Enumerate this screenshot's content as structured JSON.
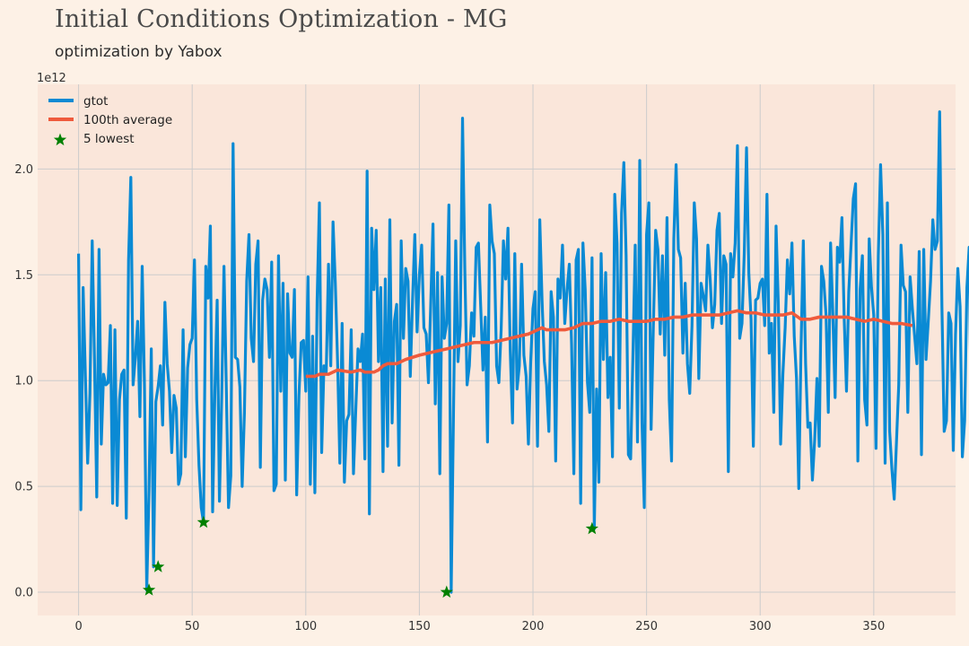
{
  "title": "Initial Conditions Optimization - MG",
  "subtitle": "optimization by Yabox",
  "chart_data": {
    "type": "line",
    "title": "Initial Conditions Optimization - MG",
    "subtitle": "optimization by Yabox",
    "y_offset_label": "1e12",
    "xlim": [
      -18,
      386
    ],
    "ylim": [
      -0.11,
      2.4
    ],
    "x_ticks": [
      0,
      50,
      100,
      150,
      200,
      250,
      300,
      350
    ],
    "y_ticks": [
      0.0,
      0.5,
      1.0,
      1.5,
      2.0
    ],
    "x_tick_labels": [
      "0",
      "50",
      "100",
      "150",
      "200",
      "250",
      "300",
      "350"
    ],
    "y_tick_labels": [
      "0.0",
      "0.5",
      "1.0",
      "1.5",
      "2.0"
    ],
    "grid": true,
    "legend_position": "top-left",
    "colors": {
      "background": "#fdf1e6",
      "plot_area": "#fae6da",
      "grid": "#cccccc",
      "gtot": "#0a8ad4",
      "average": "#ef5a3c",
      "lowest": "#008000"
    },
    "series": [
      {
        "name": "gtot",
        "type": "line",
        "x_start": 0,
        "values": [
          1.6,
          0.39,
          1.44,
          1.02,
          0.61,
          0.94,
          1.66,
          1.1,
          0.45,
          1.62,
          0.7,
          1.03,
          0.98,
          0.99,
          1.26,
          0.42,
          1.24,
          0.41,
          0.91,
          1.03,
          1.05,
          0.35,
          1.57,
          1.96,
          0.98,
          1.11,
          1.28,
          0.83,
          1.54,
          0.98,
          0.01,
          0.48,
          1.15,
          0.12,
          0.9,
          0.97,
          1.07,
          0.79,
          1.37,
          1.08,
          0.95,
          0.66,
          0.93,
          0.87,
          0.51,
          0.56,
          1.24,
          0.64,
          1.06,
          1.17,
          1.2,
          1.57,
          0.91,
          0.6,
          0.4,
          0.33,
          1.54,
          1.39,
          1.73,
          0.38,
          0.95,
          1.38,
          0.43,
          0.92,
          1.54,
          0.98,
          0.4,
          0.55,
          2.12,
          1.11,
          1.1,
          0.97,
          0.5,
          0.85,
          1.47,
          1.69,
          1.2,
          1.09,
          1.55,
          1.66,
          0.59,
          1.38,
          1.48,
          1.43,
          1.11,
          1.56,
          0.48,
          0.51,
          1.59,
          0.95,
          1.46,
          0.53,
          1.41,
          1.13,
          1.11,
          1.43,
          0.46,
          0.93,
          1.18,
          1.19,
          0.95,
          1.49,
          0.51,
          1.21,
          0.47,
          1.38,
          1.84,
          0.66,
          1.07,
          1.04,
          1.55,
          1.07,
          1.75,
          1.46,
          1.09,
          0.61,
          1.27,
          0.52,
          0.81,
          0.84,
          1.24,
          0.56,
          0.86,
          1.15,
          1.09,
          1.22,
          0.63,
          1.99,
          0.37,
          1.72,
          1.43,
          1.71,
          1.09,
          1.44,
          0.57,
          1.48,
          0.69,
          1.76,
          0.8,
          1.28,
          1.36,
          0.6,
          1.66,
          1.2,
          1.53,
          1.47,
          1.02,
          1.38,
          1.69,
          1.23,
          1.5,
          1.64,
          1.25,
          1.22,
          0.99,
          1.36,
          1.74,
          0.89,
          1.51,
          0.56,
          1.49,
          1.2,
          1.27,
          1.83,
          0.0,
          0.83,
          1.66,
          1.09,
          1.26,
          2.24,
          1.53,
          0.98,
          1.07,
          1.32,
          1.21,
          1.63,
          1.65,
          1.35,
          1.05,
          1.3,
          0.71,
          1.83,
          1.66,
          1.6,
          1.07,
          0.99,
          1.24,
          1.66,
          1.48,
          1.72,
          1.14,
          0.8,
          1.6,
          0.96,
          1.07,
          1.55,
          1.12,
          1.02,
          0.7,
          1.09,
          1.34,
          1.42,
          0.69,
          1.76,
          1.38,
          1.09,
          0.98,
          0.76,
          1.42,
          1.3,
          0.62,
          1.48,
          1.39,
          1.64,
          1.27,
          1.43,
          1.55,
          1.17,
          0.56,
          1.57,
          1.62,
          0.42,
          1.65,
          1.43,
          0.99,
          0.85,
          1.58,
          0.3,
          0.96,
          0.52,
          1.6,
          1.1,
          1.51,
          0.92,
          1.11,
          0.64,
          1.88,
          1.65,
          0.87,
          1.79,
          2.03,
          1.59,
          0.65,
          0.63,
          1.12,
          1.64,
          0.71,
          2.04,
          0.8,
          0.4,
          1.69,
          1.84,
          0.77,
          1.26,
          1.71,
          1.62,
          1.22,
          1.59,
          1.12,
          1.77,
          0.91,
          0.62,
          1.67,
          2.02,
          1.62,
          1.58,
          1.13,
          1.46,
          1.08,
          0.94,
          1.26,
          1.84,
          1.67,
          1.01,
          1.46,
          1.4,
          1.33,
          1.64,
          1.48,
          1.25,
          1.36,
          1.71,
          1.79,
          1.27,
          1.59,
          1.55,
          0.57,
          1.6,
          1.49,
          1.65,
          2.11,
          1.2,
          1.27,
          1.6,
          2.1,
          1.51,
          1.29,
          0.69,
          1.38,
          1.39,
          1.46,
          1.48,
          1.26,
          1.88,
          1.13,
          1.27,
          0.85,
          1.73,
          1.36,
          0.7,
          1.03,
          1.25,
          1.57,
          1.41,
          1.65,
          1.21,
          1.01,
          0.49,
          1.16,
          1.66,
          1.08,
          0.78,
          0.8,
          0.53,
          0.72,
          1.01,
          0.69,
          1.54,
          1.47,
          1.31,
          0.85,
          1.65,
          1.31,
          0.92,
          1.63,
          1.56,
          1.77,
          1.29,
          0.95,
          1.42,
          1.64,
          1.86,
          1.93,
          0.62,
          1.43,
          1.59,
          0.91,
          0.79,
          1.67,
          1.44,
          1.31,
          0.68,
          1.59,
          2.02,
          1.69,
          0.61,
          1.84,
          0.76,
          0.58,
          0.44,
          0.71,
          0.98,
          1.64,
          1.45,
          1.42,
          0.85,
          1.49,
          1.34,
          1.21,
          1.08,
          1.61,
          0.65,
          1.62,
          1.1,
          1.28,
          1.47,
          1.76,
          1.62,
          1.66,
          2.27,
          1.35,
          0.76,
          0.81,
          1.32,
          1.27,
          0.67,
          1.22,
          1.53,
          1.35,
          0.64,
          0.81,
          1.44,
          1.63,
          0.72
        ]
      },
      {
        "name": "100th average",
        "type": "line",
        "x": [
          100,
          104,
          106,
          110,
          112,
          114,
          120,
          124,
          126,
          130,
          132,
          134,
          136,
          140,
          144,
          150,
          154,
          158,
          162,
          166,
          170,
          174,
          178,
          182,
          186,
          190,
          194,
          198,
          200,
          202,
          204,
          206,
          210,
          214,
          218,
          222,
          226,
          230,
          234,
          238,
          242,
          246,
          250,
          254,
          258,
          262,
          266,
          270,
          274,
          278,
          282,
          286,
          290,
          294,
          298,
          302,
          306,
          310,
          314,
          318,
          322,
          326,
          330,
          334,
          338,
          342,
          346,
          350,
          354,
          358,
          362,
          367
        ],
        "values": [
          1.02,
          1.02,
          1.03,
          1.03,
          1.04,
          1.05,
          1.04,
          1.05,
          1.04,
          1.04,
          1.05,
          1.07,
          1.08,
          1.08,
          1.1,
          1.12,
          1.13,
          1.14,
          1.15,
          1.16,
          1.17,
          1.18,
          1.18,
          1.18,
          1.19,
          1.2,
          1.21,
          1.22,
          1.23,
          1.24,
          1.25,
          1.24,
          1.24,
          1.24,
          1.25,
          1.27,
          1.27,
          1.28,
          1.28,
          1.29,
          1.28,
          1.28,
          1.28,
          1.29,
          1.29,
          1.3,
          1.3,
          1.31,
          1.31,
          1.31,
          1.31,
          1.32,
          1.33,
          1.32,
          1.32,
          1.31,
          1.31,
          1.31,
          1.32,
          1.29,
          1.29,
          1.3,
          1.3,
          1.3,
          1.3,
          1.29,
          1.28,
          1.29,
          1.28,
          1.27,
          1.27,
          1.26
        ]
      },
      {
        "name": "5 lowest",
        "type": "scatter",
        "marker": "star",
        "x": [
          31,
          35,
          55,
          162,
          226
        ],
        "values": [
          0.01,
          0.12,
          0.33,
          0.0,
          0.3
        ]
      }
    ]
  }
}
